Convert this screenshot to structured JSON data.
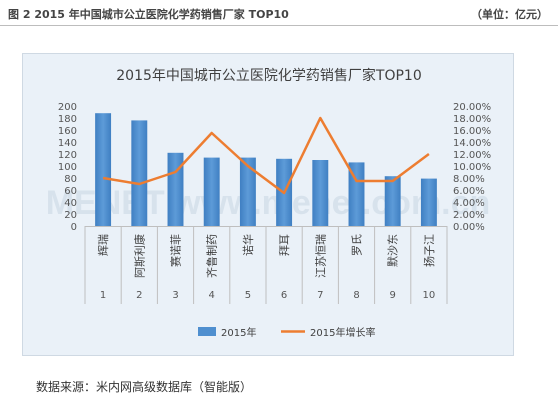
{
  "header": {
    "figure_label": "图 2   2015 年中国城市公立医院化学药销售厂家 TOP10",
    "unit_label": "（单位：亿元）"
  },
  "source_text": "数据来源：米内网高级数据库（智能版）",
  "watermark_text": "MENET  www.menet.com.cn",
  "chart_data": {
    "type": "bar",
    "title": "2015年中国城市公立医院化学药销售厂家TOP10",
    "categories": [
      "辉瑞",
      "阿斯利康",
      "赛诺菲",
      "齐鲁制药",
      "诺华",
      "拜耳",
      "江苏恒瑞",
      "罗氏",
      "默沙东",
      "扬子江"
    ],
    "rank_labels": [
      "1",
      "2",
      "3",
      "4",
      "5",
      "6",
      "7",
      "8",
      "9",
      "10"
    ],
    "series": [
      {
        "name": "2015年",
        "type": "bar",
        "axis": "left",
        "color": "#4f8fcf",
        "values": [
          188,
          176,
          122,
          114,
          114,
          112,
          110,
          106,
          83,
          79
        ]
      },
      {
        "name": "2015年增长率",
        "type": "line",
        "axis": "right",
        "color": "#ed7d31",
        "values": [
          8.0,
          7.0,
          9.0,
          15.5,
          10.0,
          5.5,
          18.0,
          7.5,
          7.5,
          12.0
        ]
      }
    ],
    "y_left": {
      "min": 0,
      "max": 200,
      "step": 20,
      "ticks": [
        "0",
        "20",
        "40",
        "60",
        "80",
        "100",
        "120",
        "140",
        "160",
        "180",
        "200"
      ]
    },
    "y_right": {
      "min": 0,
      "max": 20,
      "step": 2,
      "ticks": [
        "0.00%",
        "2.00%",
        "4.00%",
        "6.00%",
        "8.00%",
        "10.00%",
        "12.00%",
        "14.00%",
        "16.00%",
        "18.00%",
        "20.00%"
      ]
    },
    "legend_position": "bottom",
    "grid": false
  }
}
